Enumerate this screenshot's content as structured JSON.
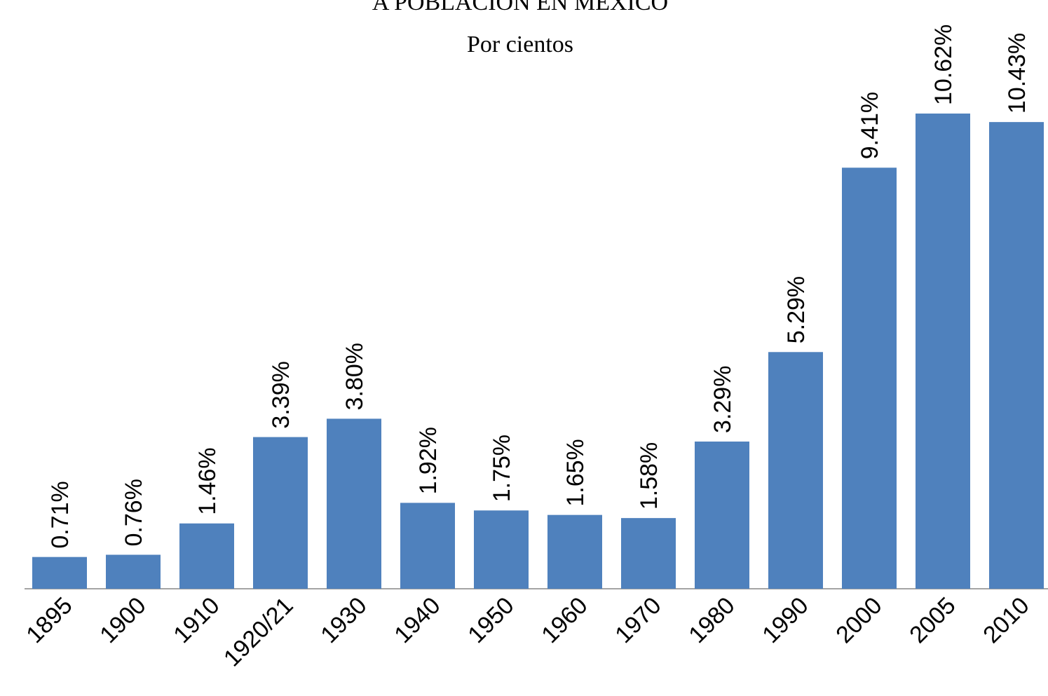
{
  "chart_data": {
    "type": "bar",
    "title": "A POBLACIÓN EN MÉXICO",
    "subtitle": "Por cientos",
    "categories": [
      "1895",
      "1900",
      "1910",
      "1920/21",
      "1930",
      "1940",
      "1950",
      "1960",
      "1970",
      "1980",
      "1990",
      "2000",
      "2005",
      "2010"
    ],
    "values": [
      0.71,
      0.76,
      1.46,
      3.39,
      3.8,
      1.92,
      1.75,
      1.65,
      1.58,
      3.29,
      5.29,
      9.41,
      10.62,
      10.43
    ],
    "value_labels": [
      "0.71%",
      "0.76%",
      "1.46%",
      "3.39%",
      "3.80%",
      "1.92%",
      "1.75%",
      "1.65%",
      "1.58%",
      "3.29%",
      "5.29%",
      "9.41%",
      "10.62%",
      "10.43%"
    ],
    "color": "#4f81bd"
  }
}
